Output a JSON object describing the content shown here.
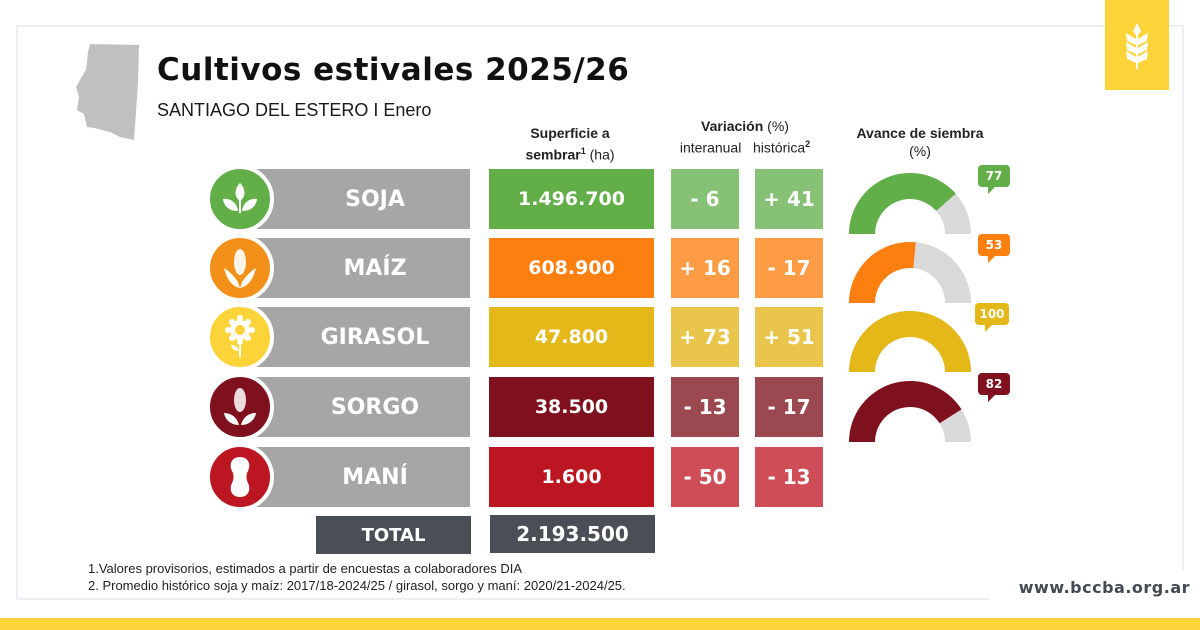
{
  "header": {
    "title": "Cultivos estivales 2025/26",
    "subtitle": "SANTIAGO DEL ESTERO I Enero"
  },
  "columns": {
    "area_line1": "Superficie a",
    "area_line2_bold": "sembrar",
    "area_sup": "1",
    "area_unit": " (ha)",
    "variation_title": "Variación",
    "variation_unit": " (%)",
    "interanual": "interanual",
    "historica": "histórica",
    "historica_sup": "2",
    "progress_title": "Avance de siembra",
    "progress_unit": "(%)"
  },
  "crops": [
    {
      "name": "SOJA",
      "icon": "soy-plant-icon",
      "area": "1.496.700",
      "interanual": "- 6",
      "historica": "+ 41",
      "progress": 77,
      "progress_label": "77",
      "color": "#62ae48",
      "light": "#86c175"
    },
    {
      "name": "MAÍZ",
      "icon": "corn-icon",
      "area": "608.900",
      "interanual": "+ 16",
      "historica": "- 17",
      "progress": 53,
      "progress_label": "53",
      "color": "#fd7f0f",
      "light": "#fe9b45"
    },
    {
      "name": "GIRASOL",
      "icon": "sunflower-icon",
      "area": "47.800",
      "interanual": "+ 73",
      "historica": "+ 51",
      "progress": 100,
      "progress_label": "100",
      "color": "#e3b818",
      "light": "#e9c64b"
    },
    {
      "name": "SORGO",
      "icon": "sorghum-icon",
      "area": "38.500",
      "interanual": "- 13",
      "historica": "- 17",
      "progress": 82,
      "progress_label": "82",
      "color": "#7e111d",
      "light": "#9c4850"
    },
    {
      "name": "MANÍ",
      "icon": "peanut-icon",
      "area": "1.600",
      "interanual": "- 50",
      "historica": "- 13",
      "progress": null,
      "progress_label": null,
      "color": "#bc1622",
      "light": "#cf4d57"
    }
  ],
  "total": {
    "label": "TOTAL",
    "value": "2.193.500"
  },
  "notes": [
    "1.Valores provisorios, estimados a partir de encuestas a colaboradores DIA",
    "2. Promedio histórico soja y maíz: 2017/18-2024/25 / girasol, sorgo y maní: 2020/21-2024/25."
  ],
  "footer": {
    "url": "www.bccba.org.ar"
  },
  "colors": {
    "brand_yellow": "#fdd33a",
    "crop_bar_gray": "#a6a6a6",
    "total_dark": "#4a4f57",
    "gauge_track": "#d9d9d9"
  }
}
